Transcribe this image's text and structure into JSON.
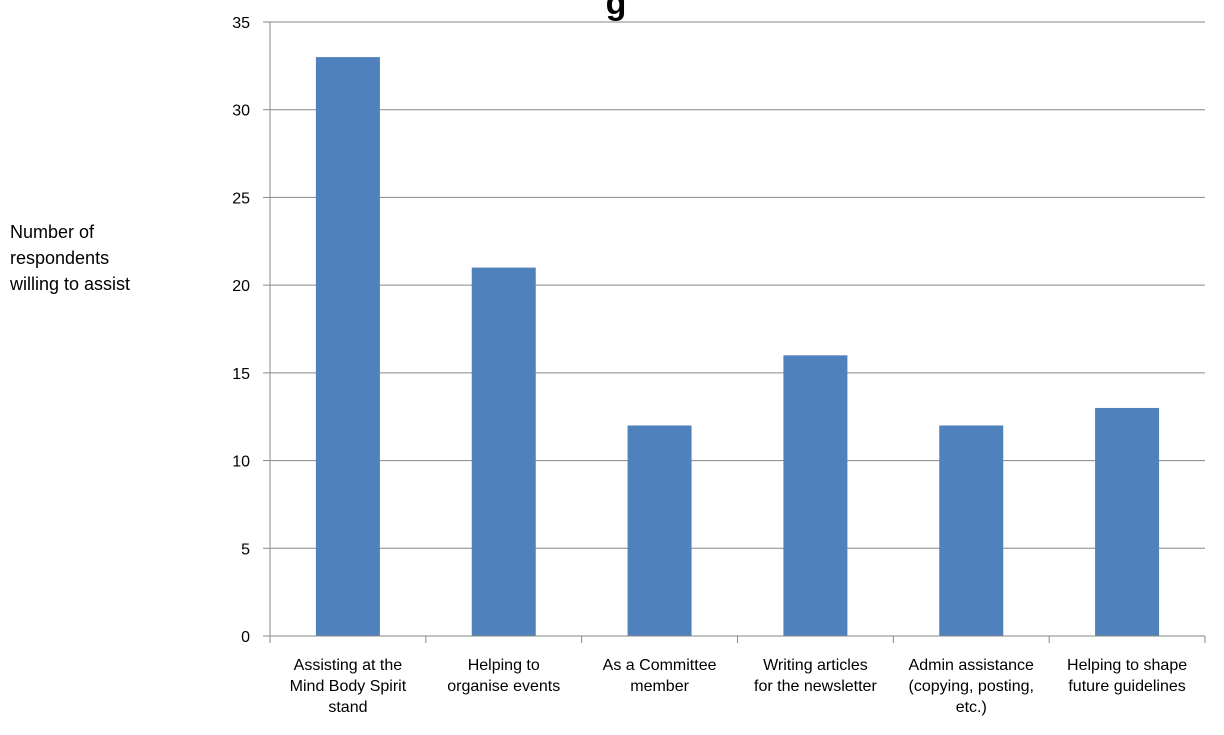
{
  "chart_data": {
    "type": "bar",
    "title": "g",
    "ylabel": "Number of respondents willing to assist",
    "xlabel": "",
    "ylim": [
      0,
      35
    ],
    "yticks": [
      0,
      5,
      10,
      15,
      20,
      25,
      30,
      35
    ],
    "grid": true,
    "legend": "none",
    "bar_color": "#4F81BD",
    "categories": [
      "Assisting at the Mind Body Spirit stand",
      "Helping to organise events",
      "As a Committee member",
      "Writing articles for the newsletter",
      "Admin assistance (copying, posting, etc.)",
      "Helping to shape future guidelines"
    ],
    "category_lines": [
      [
        "Assisting at the",
        "Mind Body Spirit",
        "stand"
      ],
      [
        "Helping to",
        "organise events"
      ],
      [
        "As a Committee",
        "member"
      ],
      [
        "Writing articles",
        "for the newsletter"
      ],
      [
        "Admin assistance",
        "(copying, posting,",
        "etc.)"
      ],
      [
        "Helping to shape",
        "future guidelines"
      ]
    ],
    "values": [
      33,
      21,
      12,
      16,
      12,
      13
    ]
  }
}
